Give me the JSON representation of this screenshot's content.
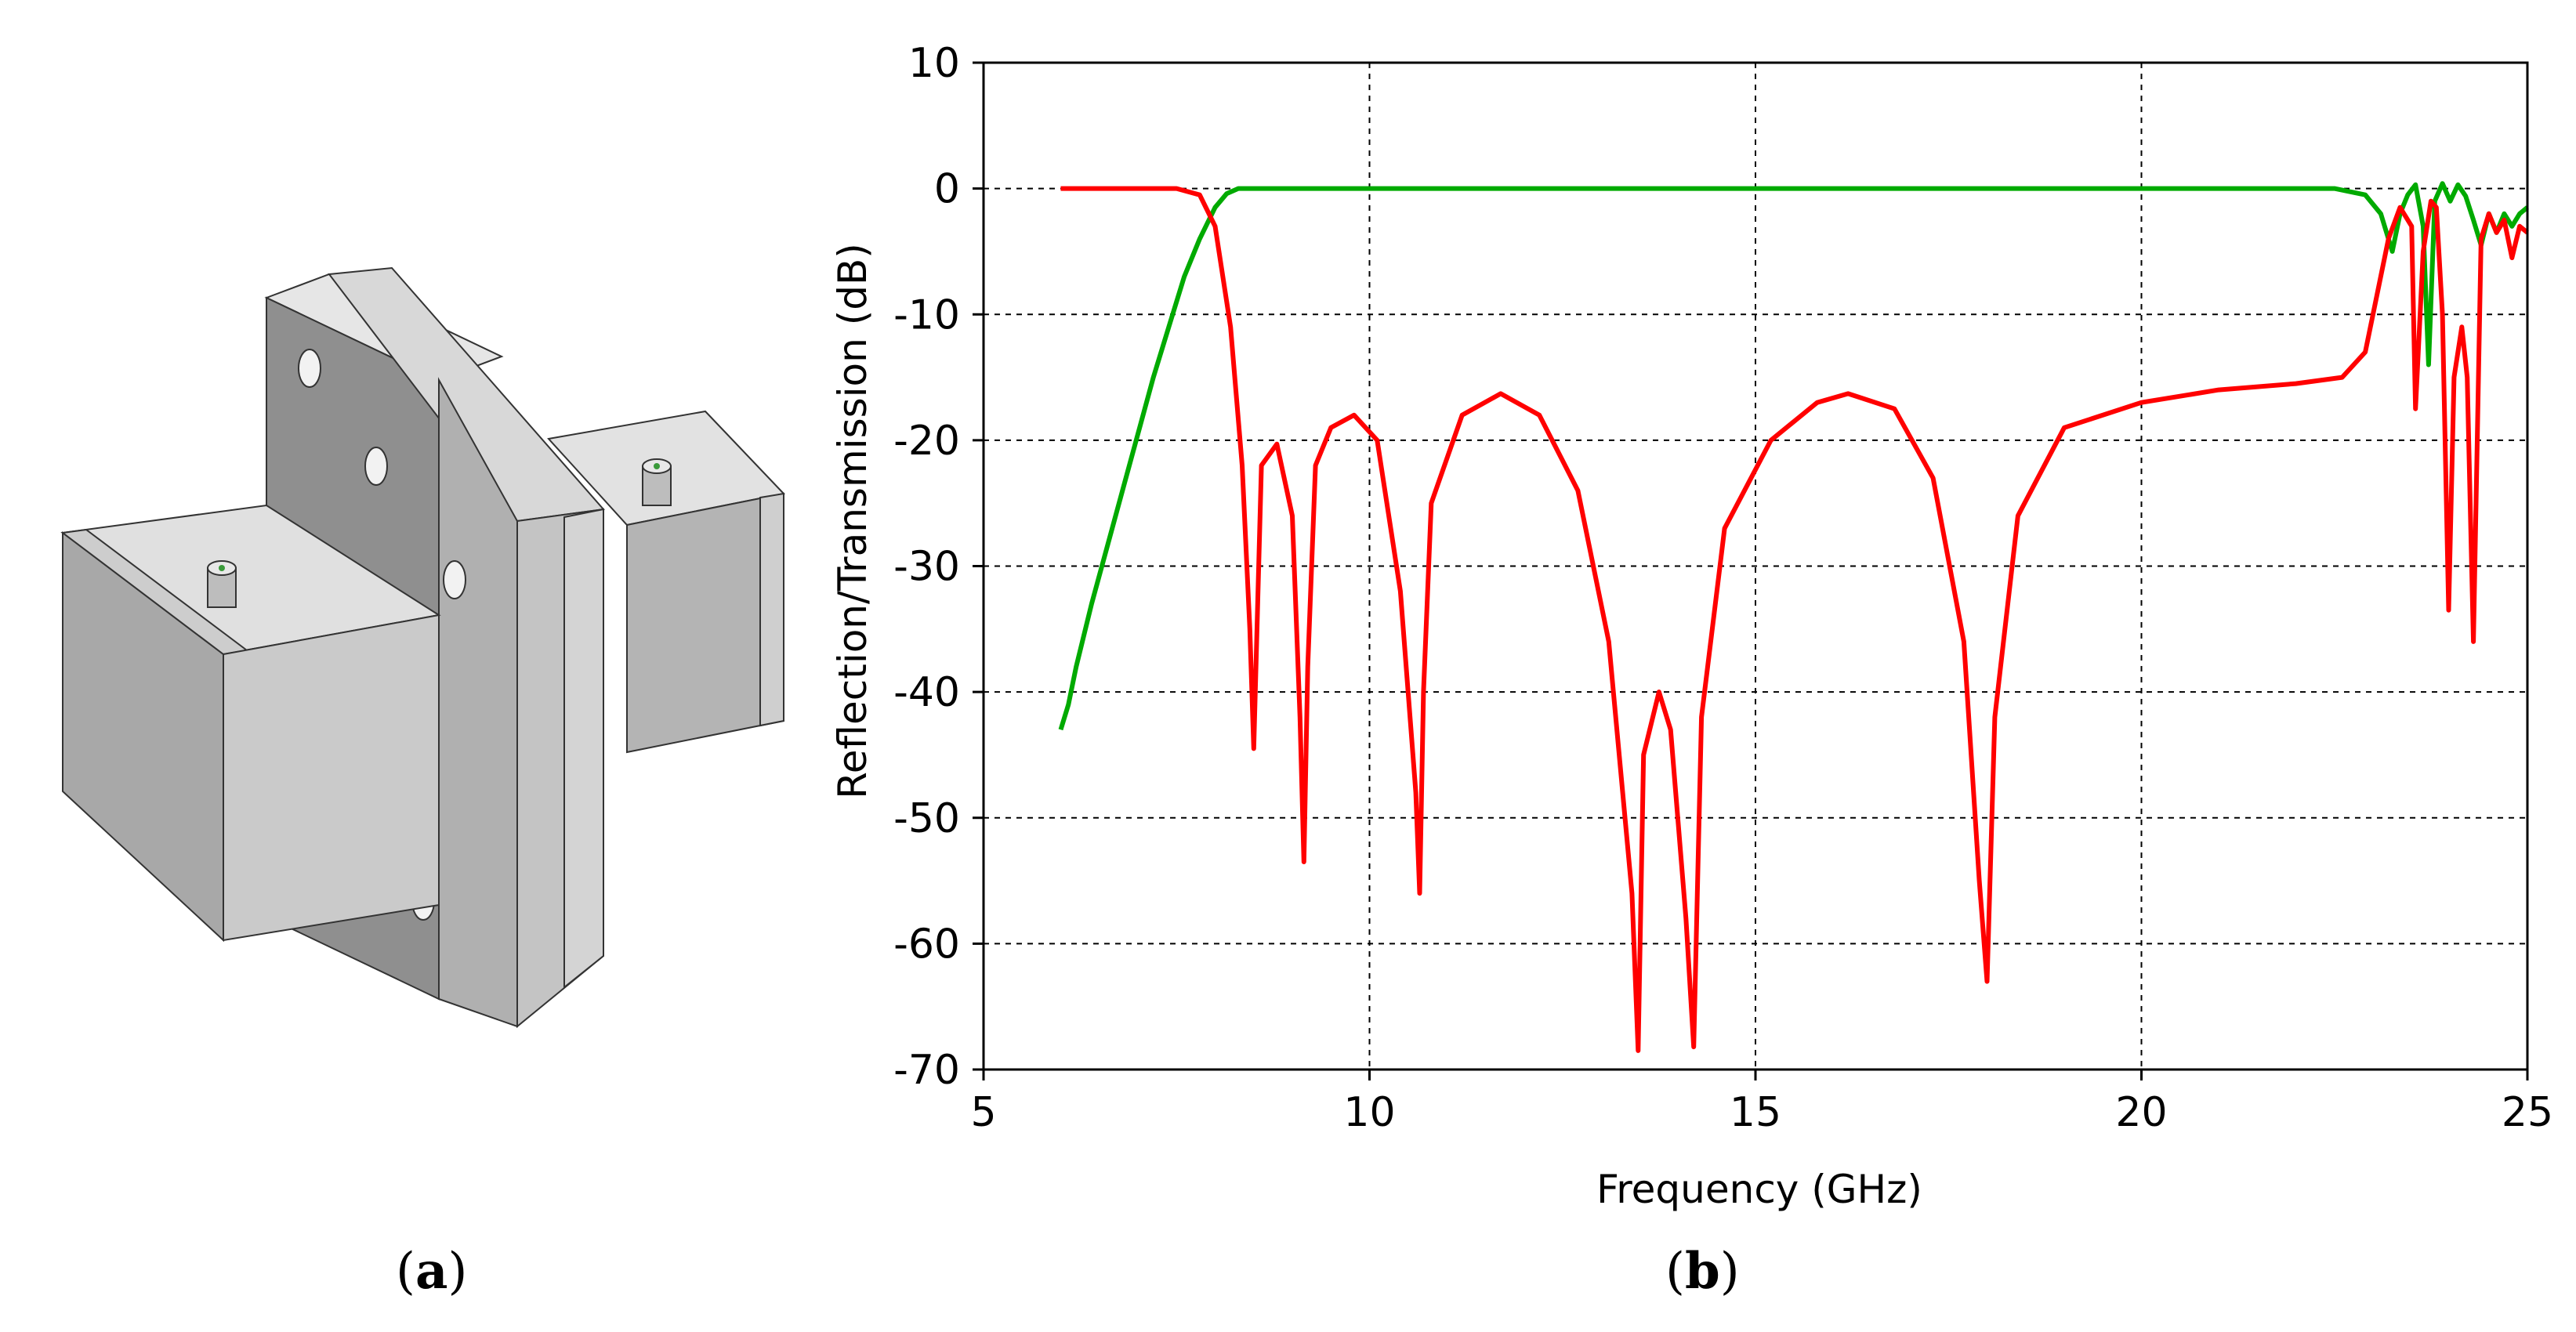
{
  "captions": {
    "a": "a",
    "b": "b"
  },
  "model": {
    "icon": "waveguide-filter-3d-model-icon",
    "face_color": "#c8c8c8"
  },
  "chart_data": {
    "type": "line",
    "title": "",
    "xlabel": "Frequency (GHz)",
    "ylabel": "Reflection/Transmission (dB)",
    "xlim": [
      5,
      25
    ],
    "ylim": [
      -70,
      10
    ],
    "xticks": [
      5,
      10,
      15,
      20,
      25
    ],
    "yticks": [
      10,
      0,
      -10,
      -20,
      -30,
      -40,
      -50,
      -60,
      -70
    ],
    "grid": true,
    "legend": "none",
    "series": [
      {
        "color": "#00aa00",
        "x": [
          6.0,
          6.1,
          6.2,
          6.4,
          6.6,
          6.8,
          7.0,
          7.2,
          7.4,
          7.6,
          7.8,
          8.0,
          8.15,
          8.3,
          8.5,
          9,
          10,
          12,
          14,
          16,
          18,
          20,
          21,
          22,
          22.5,
          22.9,
          23.1,
          23.25,
          23.35,
          23.45,
          23.55,
          23.65,
          23.72,
          23.8,
          23.9,
          24.0,
          24.1,
          24.2,
          24.3,
          24.4,
          24.5,
          24.6,
          24.7,
          24.8,
          24.9,
          25.0
        ],
        "y": [
          -43,
          -41,
          -38,
          -33,
          -28.5,
          -24,
          -19.5,
          -15,
          -11,
          -7,
          -4,
          -1.5,
          -0.4,
          0,
          0,
          0,
          0,
          0,
          0,
          0,
          0,
          0,
          0,
          0,
          0,
          -0.5,
          -2,
          -5,
          -2,
          -0.5,
          0.3,
          -3,
          -14,
          -1,
          0.4,
          -1,
          0.3,
          -0.6,
          -2.5,
          -4.5,
          -2,
          -3.5,
          -2,
          -3,
          -2,
          -1.5
        ]
      },
      {
        "color": "#ff0000",
        "x": [
          6.0,
          7.0,
          7.5,
          7.8,
          8.0,
          8.2,
          8.35,
          8.45,
          8.5,
          8.6,
          8.8,
          9.0,
          9.1,
          9.15,
          9.2,
          9.3,
          9.5,
          9.8,
          10.1,
          10.4,
          10.6,
          10.65,
          10.7,
          10.8,
          11.2,
          11.7,
          12.2,
          12.7,
          13.1,
          13.4,
          13.48,
          13.55,
          13.75,
          13.9,
          14.1,
          14.2,
          14.3,
          14.6,
          15.2,
          15.8,
          16.2,
          16.8,
          17.3,
          17.7,
          17.9,
          18.0,
          18.1,
          18.4,
          19.0,
          20.0,
          21.0,
          22.0,
          22.6,
          22.9,
          23.2,
          23.35,
          23.5,
          23.55,
          23.65,
          23.75,
          23.82,
          23.9,
          23.98,
          24.05,
          24.15,
          24.22,
          24.3,
          24.4,
          24.5,
          24.6,
          24.7,
          24.8,
          24.9,
          25.0
        ],
        "y": [
          0,
          0,
          0,
          -0.5,
          -3,
          -11,
          -22,
          -35,
          -44.5,
          -22,
          -20.3,
          -26,
          -42,
          -53.5,
          -38,
          -22,
          -19,
          -18,
          -20,
          -32,
          -48,
          -56,
          -40,
          -25,
          -18,
          -16.3,
          -18,
          -24,
          -36,
          -56,
          -68.5,
          -45,
          -40,
          -43,
          -58,
          -68.2,
          -42,
          -27,
          -20,
          -17,
          -16.3,
          -17.5,
          -23,
          -36,
          -55,
          -63,
          -42,
          -26,
          -19,
          -17,
          -16,
          -15.5,
          -15,
          -13,
          -4,
          -1.5,
          -3,
          -17.5,
          -5,
          -1,
          -1.5,
          -10,
          -33.5,
          -15,
          -11,
          -15,
          -36,
          -4,
          -2,
          -3.5,
          -2.5,
          -5.5,
          -3,
          -3.5
        ]
      }
    ]
  }
}
